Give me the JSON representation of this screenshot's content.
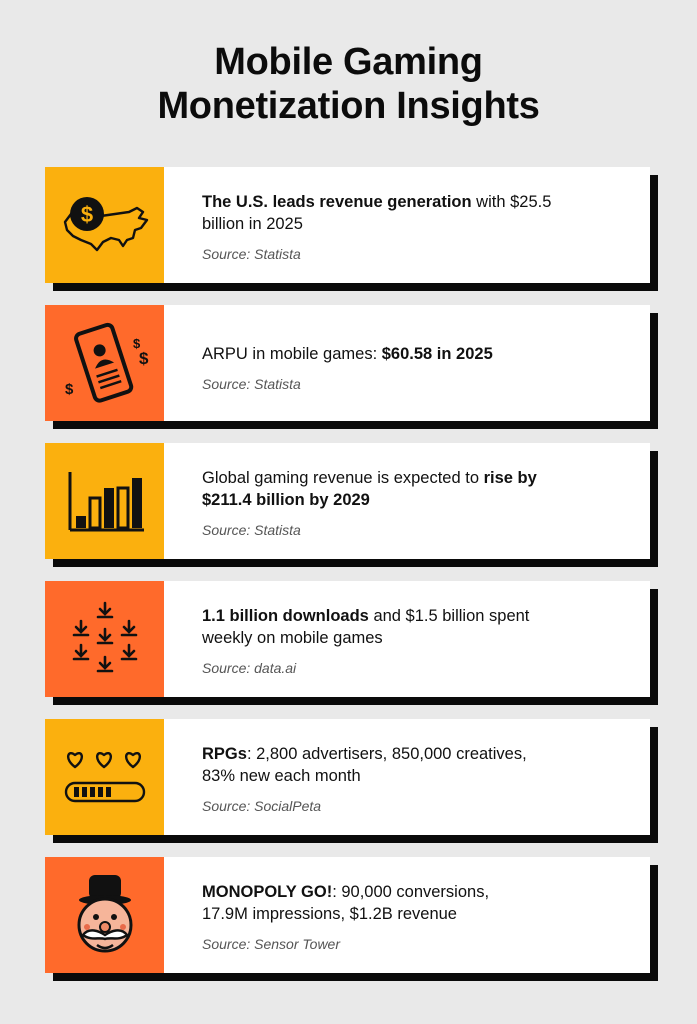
{
  "title": {
    "line1": "Mobile Gaming",
    "line2": "Monetization Insights"
  },
  "colors": {
    "yellow": "#fbb00e",
    "orange": "#ff6a2b",
    "background": "#e9e9e9"
  },
  "cards": [
    {
      "icon": "us-map-dollar-icon",
      "line1": [
        {
          "bold": "The U.S. leads revenue generation"
        },
        {
          "text": " with $25.5"
        }
      ],
      "line2": [
        {
          "text": "billion in 2025"
        }
      ],
      "source": "Source: Statista"
    },
    {
      "icon": "phone-dollar-icon",
      "line1": [
        {
          "text": "ARPU in mobile games: "
        },
        {
          "bold": "$60.58 in 2025"
        }
      ],
      "line2": [],
      "source": "Source: Statista"
    },
    {
      "icon": "bar-chart-icon",
      "line1": [
        {
          "text": "Global gaming revenue is expected to "
        },
        {
          "bold": "rise by"
        }
      ],
      "line2": [
        {
          "bold": "$211.4 billion by 2029"
        }
      ],
      "source": "Source: Statista"
    },
    {
      "icon": "download-arrows-icon",
      "line1": [
        {
          "bold": "1.1 billion downloads"
        },
        {
          "text": " and $1.5 billion spent"
        }
      ],
      "line2": [
        {
          "text": "weekly on mobile games"
        }
      ],
      "source": "Source: data.ai"
    },
    {
      "icon": "hearts-health-bar-icon",
      "line1": [
        {
          "bold": "RPGs"
        },
        {
          "text": ": 2,800 advertisers, 850,000 creatives,"
        }
      ],
      "line2": [
        {
          "text": "83% new each month"
        }
      ],
      "source": "Source: SocialPeta"
    },
    {
      "icon": "monopoly-man-icon",
      "line1": [
        {
          "bold": "MONOPOLY GO!"
        },
        {
          "text": ": 90,000 conversions,"
        }
      ],
      "line2": [
        {
          "text": "17.9M impressions, $1.2B revenue"
        }
      ],
      "source": "Source: Sensor Tower"
    }
  ]
}
